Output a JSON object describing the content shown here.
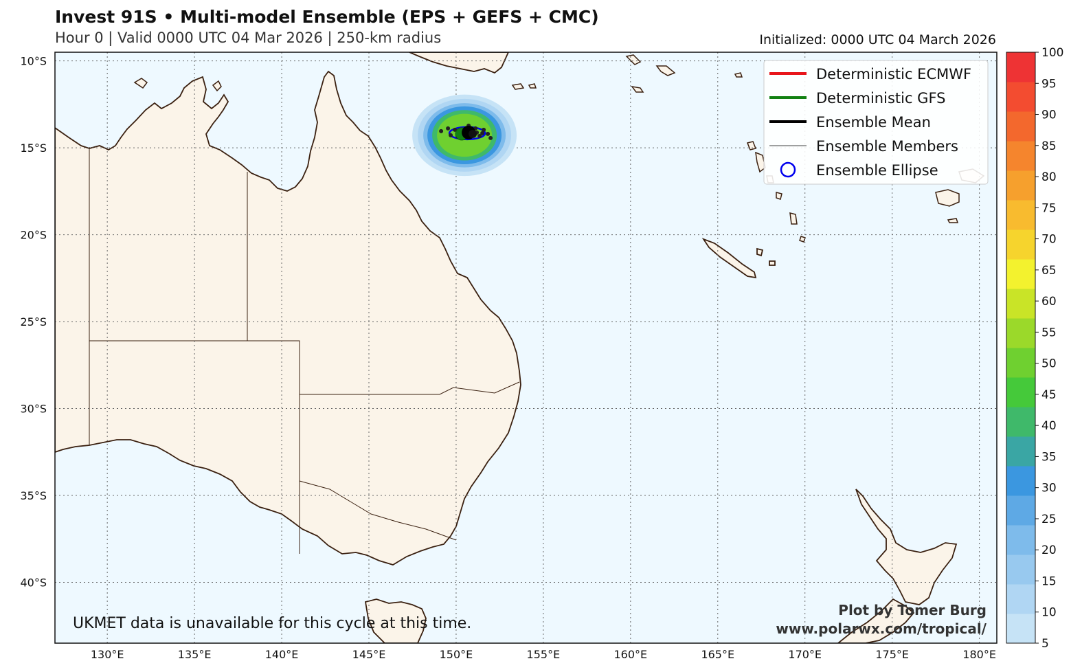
{
  "header": {
    "title": "Invest 91S • Multi-model Ensemble (EPS + GEFS + CMC)",
    "subtitle": "Hour 0 | Valid 0000 UTC 04 Mar 2026 | 250-km radius",
    "initialized": "Initialized: 0000 UTC 04 March 2026"
  },
  "legend": {
    "items": [
      {
        "label": "Deterministic ECMWF",
        "color": "#e8151b",
        "style": "line-thick"
      },
      {
        "label": "Deterministic GFS",
        "color": "#128112",
        "style": "line-thick"
      },
      {
        "label": "Ensemble Mean",
        "color": "#000000",
        "style": "line-thick"
      },
      {
        "label": "Ensemble Members",
        "color": "#000000",
        "style": "line-thin"
      },
      {
        "label": "Ensemble Ellipse",
        "color": "#0000ee",
        "style": "circle"
      }
    ]
  },
  "notes": {
    "ukmet": "UKMET data is unavailable for this cycle at this time.",
    "credit1": "Plot by Tomer Burg",
    "credit2": "www.polarwx.com/tropical/"
  },
  "map": {
    "lon_range": [
      127,
      181
    ],
    "lat_range": [
      -43.5,
      -9.5
    ],
    "lon_ticks": [
      {
        "value": 130,
        "label": "130°E"
      },
      {
        "value": 135,
        "label": "135°E"
      },
      {
        "value": 140,
        "label": "140°E"
      },
      {
        "value": 145,
        "label": "145°E"
      },
      {
        "value": 150,
        "label": "150°E"
      },
      {
        "value": 155,
        "label": "155°E"
      },
      {
        "value": 160,
        "label": "160°E"
      },
      {
        "value": 165,
        "label": "165°E"
      },
      {
        "value": 170,
        "label": "170°E"
      },
      {
        "value": 175,
        "label": "175°E"
      },
      {
        "value": 180,
        "label": "180°E"
      }
    ],
    "lat_ticks": [
      {
        "value": -10,
        "label": "10°S"
      },
      {
        "value": -15,
        "label": "15°S"
      },
      {
        "value": -20,
        "label": "20°S"
      },
      {
        "value": -25,
        "label": "25°S"
      },
      {
        "value": -30,
        "label": "30°S"
      },
      {
        "value": -35,
        "label": "35°S"
      },
      {
        "value": -40,
        "label": "40°S"
      }
    ],
    "ocean_color": "#eef9ff",
    "land_color": "#fbf4e9",
    "coast_color": "#3a2010",
    "storm_center": {
      "lon": 150.4,
      "lat": -14.2
    }
  },
  "colorbar": {
    "ticks": [
      "5",
      "10",
      "15",
      "20",
      "25",
      "30",
      "35",
      "40",
      "45",
      "50",
      "55",
      "60",
      "65",
      "70",
      "75",
      "80",
      "85",
      "90",
      "95",
      "100"
    ],
    "colors": [
      "#c6e3f6",
      "#b0d6f3",
      "#98c9ef",
      "#7ebbeb",
      "#5ea9e5",
      "#3b97e0",
      "#3aa6a4",
      "#3fb96a",
      "#45c93a",
      "#6fd030",
      "#9bd92a",
      "#c9e427",
      "#f3f22e",
      "#f6d42d",
      "#f8bb2f",
      "#f6a02d",
      "#f5852d",
      "#f3682d",
      "#f34c30",
      "#ee3334"
    ]
  }
}
